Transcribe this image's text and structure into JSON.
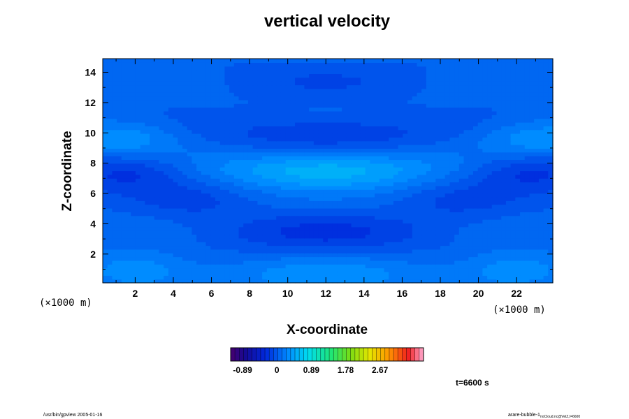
{
  "chart_data": {
    "type": "heatmap",
    "title": "vertical velocity",
    "xlabel": "X-coordinate",
    "ylabel": "Z-coordinate",
    "x_unit": "(×1000 m)",
    "z_unit": "(×1000 m)",
    "xlim": [
      0.3,
      23.9
    ],
    "ylim": [
      0.1,
      14.9
    ],
    "x_ticks": [
      2,
      4,
      6,
      8,
      10,
      12,
      14,
      16,
      18,
      20,
      22
    ],
    "y_ticks": [
      2,
      4,
      6,
      8,
      10,
      12,
      14
    ],
    "colorbar": {
      "tick_labels": [
        "-0.89",
        "0",
        "0.89",
        "1.78",
        "2.67"
      ],
      "tick_values": [
        -0.89,
        0,
        0.89,
        1.78,
        2.67
      ],
      "range": [
        -1.2,
        3.8
      ],
      "levels": 45
    },
    "features": [
      {
        "x": 12.0,
        "z": 7.6,
        "value": 0.5
      },
      {
        "x": 12.0,
        "z": 10.0,
        "value": -0.25
      },
      {
        "x": 12.0,
        "z": 3.4,
        "value": -0.25
      },
      {
        "x": 12.0,
        "z": 13.5,
        "value": -0.1
      },
      {
        "x": 1.2,
        "z": 9.7,
        "value": 0.3
      },
      {
        "x": 23.3,
        "z": 9.7,
        "value": 0.3
      },
      {
        "x": 1.5,
        "z": 7.5,
        "value": -0.3
      },
      {
        "x": 22.8,
        "z": 7.5,
        "value": -0.3
      },
      {
        "x": 2.0,
        "z": 1.0,
        "value": 0.3
      },
      {
        "x": 22.0,
        "z": 1.0,
        "value": 0.3
      },
      {
        "x": 12.0,
        "z": 0.5,
        "value": 0.25
      },
      {
        "x": 5.0,
        "z": 5.5,
        "value": -0.15
      },
      {
        "x": 19.0,
        "z": 5.5,
        "value": -0.15
      }
    ],
    "base_value": 0.05,
    "colors": {
      "low": "#0b1a6e",
      "mid": "#0aa6ff",
      "high": "#ff2020"
    }
  },
  "annotations": {
    "time": "t=6600 s",
    "footer_left": "/usr/bin/gpview 2005-01-16",
    "footer_right_main": "arare-bubble-1",
    "footer_right_sub": "noCloud.nc@VelZ,t=6600"
  }
}
